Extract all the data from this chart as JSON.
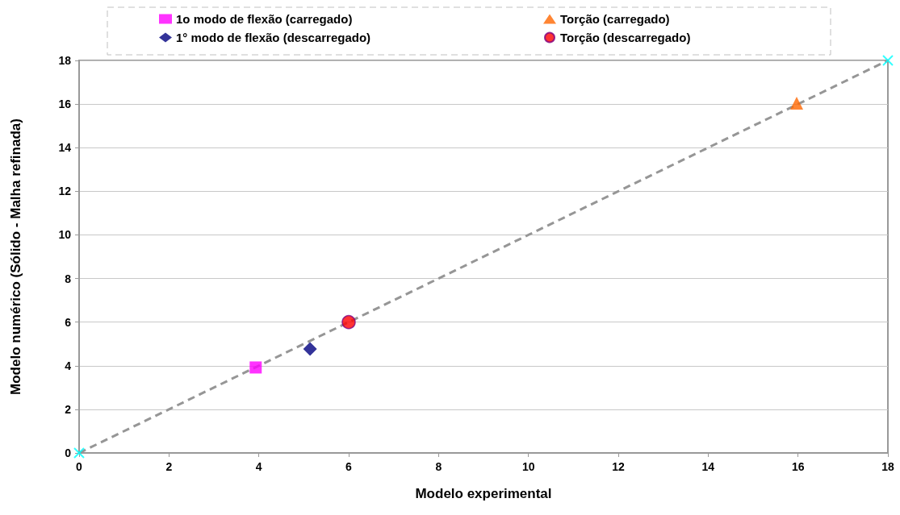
{
  "chart_data": {
    "type": "scatter",
    "xlabel": "Modelo experimental",
    "ylabel": "Modelo numérico (Sólido - Malha refinada)",
    "xlim": [
      0,
      18
    ],
    "xticks": [
      0,
      2,
      4,
      6,
      8,
      10,
      12,
      14,
      16,
      18
    ],
    "ylim": [
      0,
      18
    ],
    "yticks": [
      0,
      2,
      4,
      6,
      8,
      10,
      12,
      14,
      16,
      18
    ],
    "grid": "y",
    "legend": "top",
    "series": [
      {
        "name": "1o modo de flexão (carregado)",
        "color": "#ff00ff",
        "marker": "square",
        "x": [
          3.93
        ],
        "values": [
          3.92
        ]
      },
      {
        "name": "Torção (carregado)",
        "color": "#ff6600",
        "marker": "triangle",
        "x": [
          15.97
        ],
        "values": [
          16.04
        ]
      },
      {
        "name": "1° modo de flexão (descarregado)",
        "color": "#000080",
        "marker": "diamond",
        "x": [
          5.14
        ],
        "values": [
          4.77
        ]
      },
      {
        "name": "Torção (descarregado)",
        "color": "#ff0000",
        "marker": "circle",
        "x": [
          6.0
        ],
        "values": [
          6.0
        ]
      },
      {
        "type": "line",
        "color": "#969696",
        "marker": "none",
        "line_style": "dashed",
        "x": [
          0,
          18
        ],
        "values": [
          0,
          18
        ]
      },
      {
        "color": "#00ffff",
        "marker": "cross",
        "x": [
          0,
          18
        ],
        "values": [
          0,
          18
        ]
      }
    ]
  }
}
